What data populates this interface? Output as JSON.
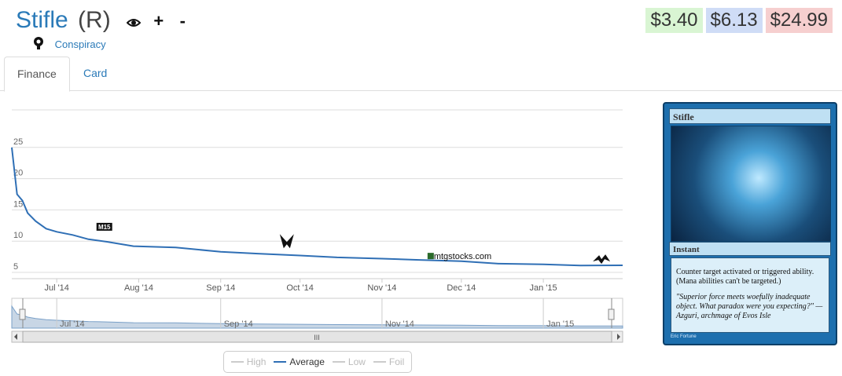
{
  "card": {
    "name": "Stifle",
    "rarity": "(R)",
    "set_name": "Conspiracy",
    "icons": [
      "eye-icon",
      "plus-icon",
      "minus-icon",
      "set-symbol-icon"
    ],
    "plus_label": "+",
    "minus_label": "-"
  },
  "prices": {
    "low": "$3.40",
    "average": "$6.13",
    "high": "$24.99",
    "colors": {
      "low": "#d9f5d3",
      "average": "#cfdcf6",
      "high": "#f6cfcf"
    }
  },
  "tabs": [
    {
      "label": "Finance",
      "active": true
    },
    {
      "label": "Card",
      "active": false
    }
  ],
  "chart_data": {
    "type": "line",
    "title": "",
    "xlabel": "",
    "ylabel": "",
    "ylim": [
      4,
      31
    ],
    "yticks": [
      5,
      10,
      15,
      20,
      25
    ],
    "xlim": [
      "2014-06-14",
      "2015-01-31"
    ],
    "xticks": [
      {
        "date": "2014-07-01",
        "label": "Jul '14"
      },
      {
        "date": "2014-08-01",
        "label": "Aug '14"
      },
      {
        "date": "2014-09-01",
        "label": "Sep '14"
      },
      {
        "date": "2014-10-01",
        "label": "Oct '14"
      },
      {
        "date": "2014-11-01",
        "label": "Nov '14"
      },
      {
        "date": "2014-12-01",
        "label": "Dec '14"
      },
      {
        "date": "2015-01-01",
        "label": "Jan '15"
      }
    ],
    "grid": true,
    "legend_position": "bottom",
    "series": [
      {
        "name": "Average",
        "color": "#2f6fb5",
        "points": [
          [
            "2014-06-14",
            24.99
          ],
          [
            "2014-06-16",
            17.5
          ],
          [
            "2014-06-18",
            16.5
          ],
          [
            "2014-06-20",
            14.5
          ],
          [
            "2014-06-23",
            13.2
          ],
          [
            "2014-06-27",
            12.0
          ],
          [
            "2014-07-01",
            11.5
          ],
          [
            "2014-07-07",
            11.0
          ],
          [
            "2014-07-13",
            10.3
          ],
          [
            "2014-07-20",
            9.9
          ],
          [
            "2014-07-30",
            9.2
          ],
          [
            "2014-08-15",
            9.0
          ],
          [
            "2014-09-01",
            8.3
          ],
          [
            "2014-09-15",
            8.0
          ],
          [
            "2014-10-01",
            7.7
          ],
          [
            "2014-10-15",
            7.4
          ],
          [
            "2014-11-01",
            7.2
          ],
          [
            "2014-11-15",
            7.0
          ],
          [
            "2014-12-01",
            6.8
          ],
          [
            "2014-12-15",
            6.4
          ],
          [
            "2015-01-01",
            6.3
          ],
          [
            "2015-01-15",
            6.1
          ],
          [
            "2015-01-31",
            6.13
          ]
        ]
      }
    ],
    "legend": [
      {
        "label": "High",
        "visible": false
      },
      {
        "label": "Average",
        "visible": true
      },
      {
        "label": "Low",
        "visible": false
      },
      {
        "label": "Foil",
        "visible": false
      }
    ],
    "annotations": [
      {
        "date": "2014-07-19",
        "value": 12.3,
        "icon": "m15-set-icon",
        "label": "M15"
      },
      {
        "date": "2014-09-26",
        "value": 10.0,
        "icon": "khans-set-icon"
      },
      {
        "date": "2014-11-20",
        "value": 7.5,
        "icon": "mtgstocks-logo-icon",
        "label": "mtgstocks.com"
      },
      {
        "date": "2015-01-23",
        "value": 7.0,
        "icon": "fate-set-icon"
      }
    ],
    "navigator": {
      "xticks": [
        {
          "date": "2014-07-01",
          "label": "Jul '14"
        },
        {
          "date": "2014-09-01",
          "label": "Sep '14"
        },
        {
          "date": "2014-11-01",
          "label": "Nov '14"
        },
        {
          "date": "2015-01-01",
          "label": "Jan '15"
        }
      ],
      "scrollbar_label": "III"
    }
  },
  "card_image": {
    "name": "Stifle",
    "type_line": "Instant",
    "rules_text": "Counter target activated or triggered ability. (Mana abilities can't be targeted.)",
    "flavor_text": "\"Superior force meets woefully inadequate object. What paradox were you expecting?\" —Azguri, archmage of Evos Isle",
    "artist": "Eric Fortune"
  }
}
